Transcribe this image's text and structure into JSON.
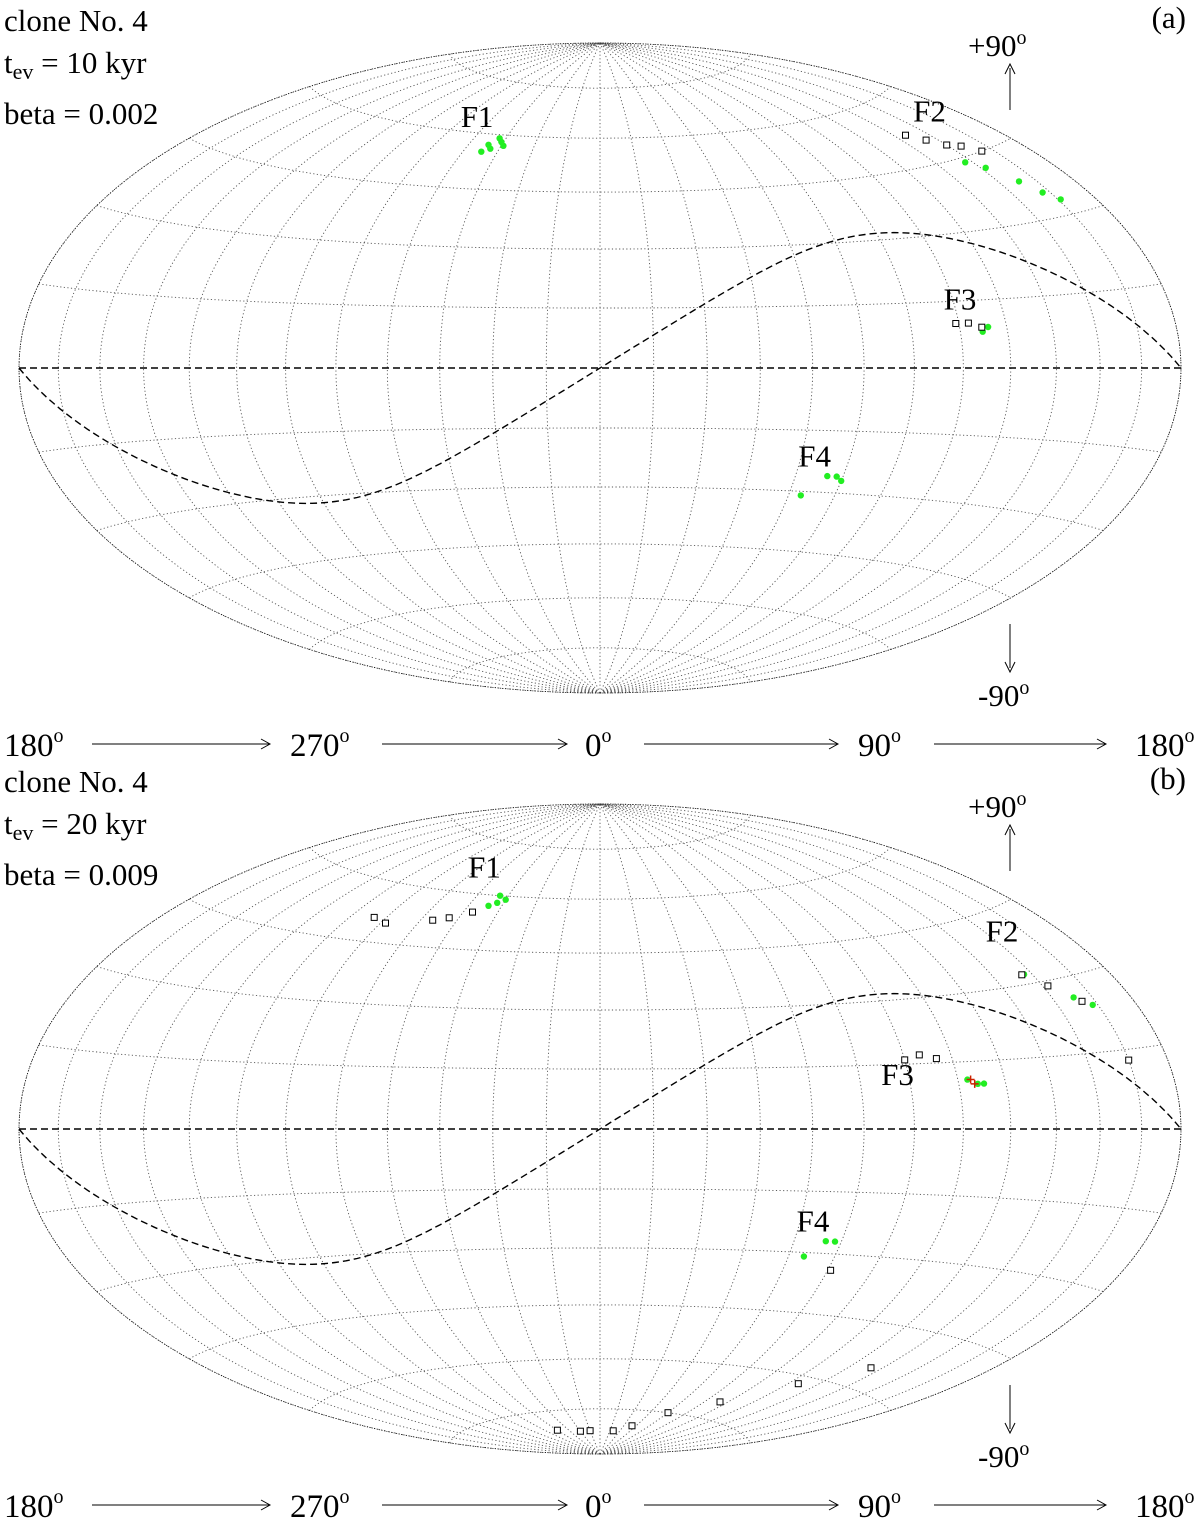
{
  "panels": [
    {
      "panel_label": "(a)",
      "clone": "clone No. 4",
      "tev_prefix": "t",
      "tev_sub": "ev",
      "tev_value": " = 10 kyr",
      "beta": "beta = 0.002",
      "north_label": "+90",
      "south_label": "-90",
      "degree_mark": "o",
      "x_axis_labels": [
        "180",
        "270",
        "0",
        "90",
        "180"
      ]
    },
    {
      "panel_label": "(b)",
      "clone": "clone No. 4",
      "tev_prefix": "t",
      "tev_sub": "ev",
      "tev_value": " = 20 kyr",
      "beta": "beta = 0.009",
      "north_label": "+90",
      "south_label": "-90",
      "degree_mark": "o",
      "x_axis_labels": [
        "180",
        "270",
        "0",
        "90",
        "180"
      ]
    }
  ],
  "colors": {
    "green_points": "#22ee22",
    "black_squares": "#000000",
    "red_points": "#cc2200",
    "grid": "#555555"
  },
  "chart_data": [
    {
      "type": "scatter",
      "projection": "Hammer-Aitoff (all-sky)",
      "longitude_axis": [
        "180",
        "270",
        "0",
        "90",
        "180"
      ],
      "latitude_range": [
        -90,
        90
      ],
      "grid": true,
      "ecliptic_curve": "dashed sinusoid",
      "features": [
        {
          "name": "F1",
          "lon": 311,
          "lat": 57
        },
        {
          "name": "F2",
          "lon": 153,
          "lat": 49
        },
        {
          "name": "F3",
          "lon": 110,
          "lat": 9
        },
        {
          "name": "F4",
          "lon": 72,
          "lat": -28
        }
      ],
      "series": [
        {
          "marker": "filled circle",
          "color": "green",
          "points": [
            [
              308,
              55
            ],
            [
              311,
              56
            ],
            [
              314,
              58
            ],
            [
              316,
              57
            ],
            [
              309,
              57
            ],
            [
              312,
              59
            ],
            [
              147,
              44
            ],
            [
              152,
              42
            ],
            [
              158,
              38
            ],
            [
              162,
              35
            ],
            [
              166,
              33
            ],
            [
              108,
              10
            ],
            [
              112,
              8
            ],
            [
              114,
              9
            ],
            [
              70,
              -26
            ],
            [
              73,
              -26
            ],
            [
              75,
              -27
            ],
            [
              64,
              -31
            ]
          ]
        },
        {
          "marker": "open square",
          "color": "black",
          "points": [
            [
              140,
              52
            ],
            [
              145,
              50
            ],
            [
              150,
              48
            ],
            [
              155,
              47
            ],
            [
              160,
              45
            ],
            [
              104,
              10
            ],
            [
              108,
              10
            ],
            [
              112,
              9
            ]
          ]
        }
      ]
    },
    {
      "type": "scatter",
      "projection": "Hammer-Aitoff (all-sky)",
      "longitude_axis": [
        "180",
        "270",
        "0",
        "90",
        "180"
      ],
      "latitude_range": [
        -90,
        90
      ],
      "grid": true,
      "ecliptic_curve": "dashed sinusoid",
      "features": [
        {
          "name": "F1",
          "lon": 311,
          "lat": 60
        },
        {
          "name": "F2",
          "lon": 150,
          "lat": 35
        },
        {
          "name": "F3",
          "lon": 90,
          "lat": 6
        },
        {
          "name": "F4",
          "lon": 72,
          "lat": -29
        }
      ],
      "series": [
        {
          "marker": "filled circle",
          "color": "green",
          "points": [
            [
              309,
              57
            ],
            [
              312,
              58
            ],
            [
              315,
              59
            ],
            [
              311,
              60
            ],
            [
              147,
              32
            ],
            [
              152,
              29
            ],
            [
              158,
              26
            ],
            [
              163,
              24
            ],
            [
              108,
              11
            ],
            [
              111,
              10
            ],
            [
              113,
              10
            ],
            [
              70,
              -27
            ],
            [
              73,
              -27
            ],
            [
              65,
              -31
            ]
          ]
        },
        {
          "marker": "open square",
          "color": "black",
          "points": [
            [
              265,
              51
            ],
            [
              272,
              50
            ],
            [
              290,
              52
            ],
            [
              296,
              53
            ],
            [
              304,
              55
            ],
            [
              146,
              32
            ],
            [
              152,
              29
            ],
            [
              160,
              25
            ],
            [
              165,
              13
            ],
            [
              90,
              16
            ],
            [
              95,
              17
            ],
            [
              100,
              16
            ],
            [
              76,
              -34
            ],
            [
              300,
              -81
            ],
            [
              330,
              -82
            ],
            [
              345,
              -82
            ],
            [
              20,
              -82
            ],
            [
              40,
              -80
            ],
            [
              60,
              -75
            ],
            [
              85,
              -70
            ],
            [
              110,
              -62
            ],
            [
              130,
              -55
            ]
          ]
        },
        {
          "marker": "plus",
          "color": "red",
          "points": [
            [
              109,
              11
            ],
            [
              110,
              10
            ]
          ]
        }
      ]
    }
  ]
}
